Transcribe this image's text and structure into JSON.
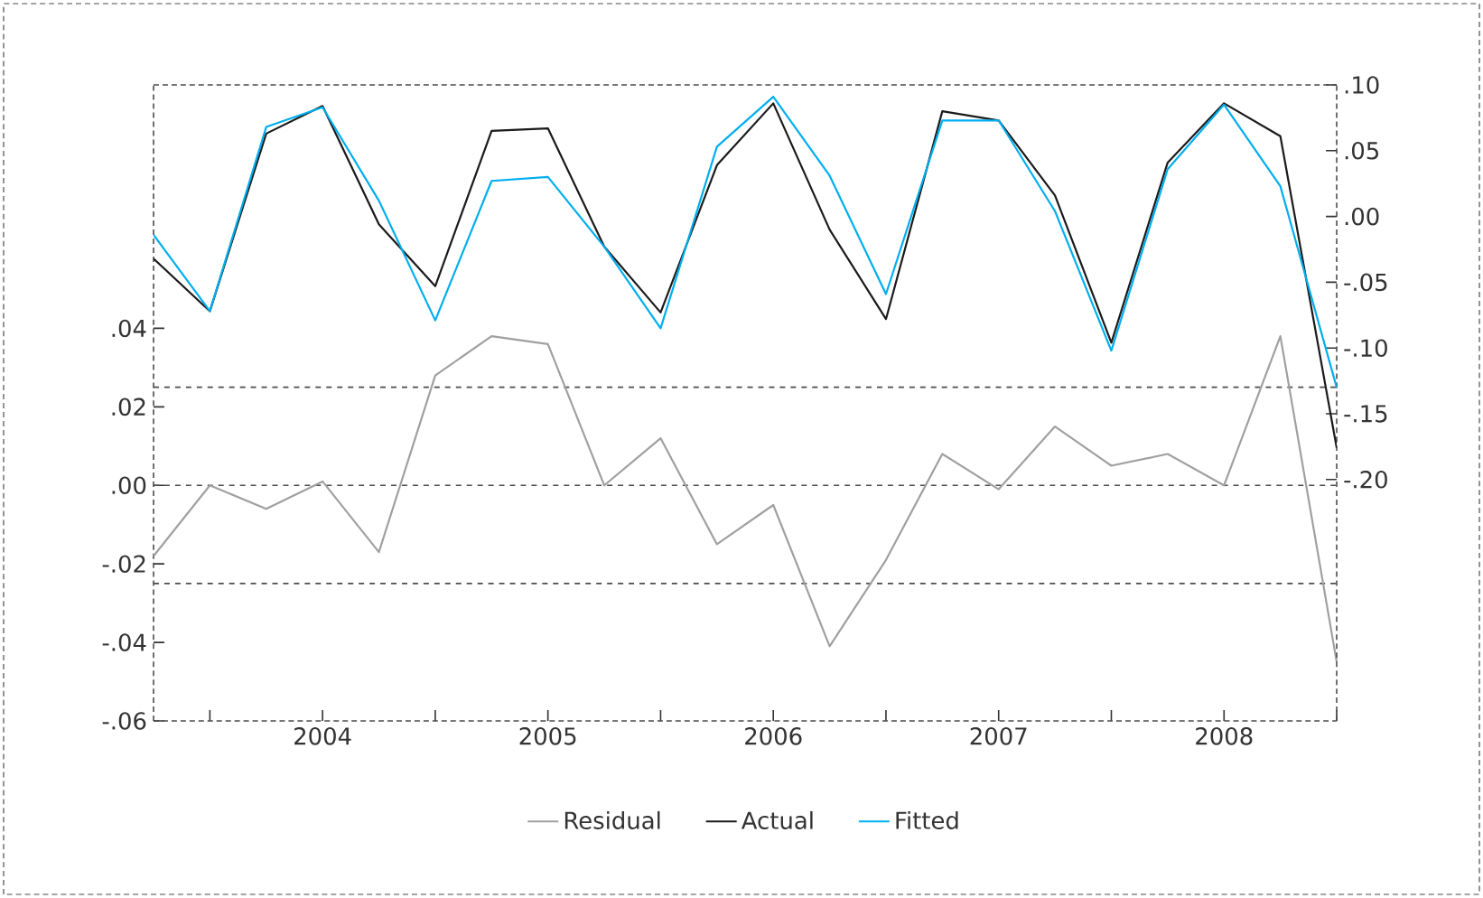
{
  "chart_data": {
    "type": "line",
    "x": [
      2003.75,
      2004.0,
      2004.25,
      2004.5,
      2004.75,
      2005.0,
      2005.25,
      2005.5,
      2005.75,
      2006.0,
      2006.25,
      2006.5,
      2006.75,
      2007.0,
      2007.25,
      2007.5,
      2007.75,
      2008.0,
      2008.25,
      2008.5,
      2008.75,
      2009.0
    ],
    "series": [
      {
        "name": "Residual",
        "color": "#a0a0a0",
        "values": [
          -0.018,
          0.0,
          -0.006,
          0.001,
          -0.017,
          0.028,
          0.038,
          0.036,
          0.0,
          0.012,
          -0.015,
          -0.005,
          -0.041,
          -0.019,
          0.008,
          -0.001,
          0.015,
          0.005,
          0.008,
          0.0,
          0.038,
          -0.045
        ]
      },
      {
        "name": "Actual",
        "color": "#1a1a1a",
        "axis": "y2",
        "values": [
          -0.032,
          -0.072,
          0.063,
          0.084,
          -0.006,
          -0.053,
          0.065,
          0.067,
          -0.023,
          -0.073,
          0.039,
          0.086,
          -0.01,
          -0.078,
          0.08,
          0.073,
          0.016,
          -0.096,
          0.041,
          0.086,
          0.061,
          -0.176
        ]
      },
      {
        "name": "Fitted",
        "color": "#00aeef",
        "axis": "y2",
        "values": [
          -0.014,
          -0.072,
          0.068,
          0.083,
          0.012,
          -0.079,
          0.027,
          0.03,
          -0.023,
          -0.085,
          0.053,
          0.091,
          0.031,
          -0.059,
          0.073,
          0.073,
          0.004,
          -0.102,
          0.036,
          0.085,
          0.023,
          -0.13
        ]
      }
    ],
    "xlim": [
      2003.75,
      2009.0
    ],
    "xticks": [
      {
        "value": 2004,
        "label": null
      },
      {
        "value": 2004.5,
        "label": "2004"
      },
      {
        "value": 2005,
        "label": null
      },
      {
        "value": 2005.5,
        "label": "2005"
      },
      {
        "value": 2006,
        "label": null
      },
      {
        "value": 2006.5,
        "label": "2006"
      },
      {
        "value": 2007,
        "label": null
      },
      {
        "value": 2007.5,
        "label": "2007"
      },
      {
        "value": 2008,
        "label": null
      },
      {
        "value": 2008.5,
        "label": "2008"
      },
      {
        "value": 2009,
        "label": null
      }
    ],
    "ylim": [
      -0.06,
      0.102
    ],
    "yticks": [
      {
        "value": -0.06,
        "label": "-.06"
      },
      {
        "value": -0.04,
        "label": "-.04"
      },
      {
        "value": -0.02,
        "label": "-.02"
      },
      {
        "value": 0.0,
        "label": ".00"
      },
      {
        "value": 0.02,
        "label": ".02"
      },
      {
        "value": 0.04,
        "label": ".04"
      }
    ],
    "y2lim": [
      -0.3835,
      0.1
    ],
    "y2ticks": [
      {
        "value": -0.2,
        "label": "-.20"
      },
      {
        "value": -0.15,
        "label": "-.15"
      },
      {
        "value": -0.1,
        "label": "-.10"
      },
      {
        "value": -0.05,
        "label": "-.05"
      },
      {
        "value": 0.0,
        "label": ".00"
      },
      {
        "value": 0.05,
        "label": ".05"
      },
      {
        "value": 0.1,
        "label": ".10"
      }
    ],
    "ref_lines": [
      {
        "axis": "y",
        "value": 0.025,
        "line_style": "dashed"
      },
      {
        "axis": "y",
        "value": 0.0,
        "line_style": "dashed"
      },
      {
        "axis": "y",
        "value": -0.025,
        "line_style": "dashed"
      }
    ],
    "legend": "bottom",
    "grid": false,
    "line_style": "solid",
    "marker": "none"
  }
}
